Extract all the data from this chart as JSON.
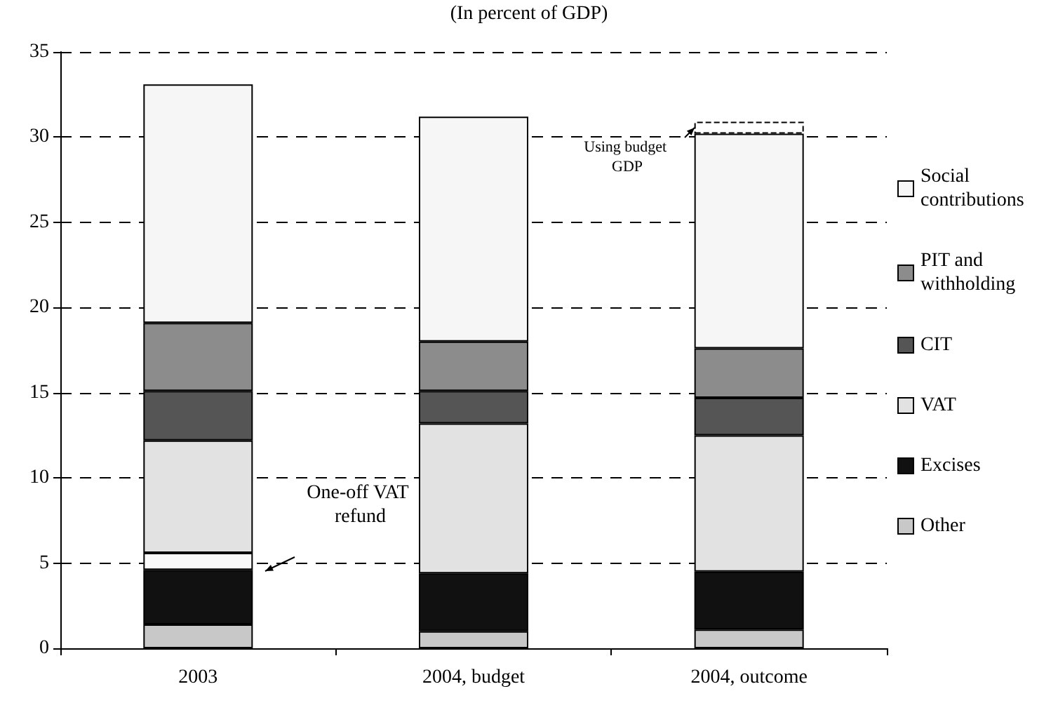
{
  "chart_data": {
    "type": "bar",
    "subtitle": "(In percent of GDP)",
    "stacked": true,
    "categories": [
      "2003",
      "2004, budget",
      "2004, outcome"
    ],
    "series": [
      {
        "name": "Other",
        "color": "#c8c8c8",
        "values": [
          1.4,
          1.0,
          1.1
        ]
      },
      {
        "name": "Excises",
        "color": "#111111",
        "values": [
          3.2,
          3.4,
          3.4
        ]
      },
      {
        "color": "#fafafa",
        "values": [
          1.0,
          null,
          null
        ]
      },
      {
        "name": "VAT",
        "color": "#e2e2e2",
        "values": [
          6.6,
          8.8,
          8.0
        ]
      },
      {
        "name": "CIT",
        "color": "#555555",
        "values": [
          2.9,
          1.9,
          2.2
        ]
      },
      {
        "name": "PIT and withholding",
        "color": "#8c8c8c",
        "values": [
          4.0,
          2.9,
          2.9
        ]
      },
      {
        "name": "Social contributions",
        "color": "#f6f6f6",
        "values": [
          14.0,
          13.2,
          12.6
        ]
      },
      {
        "color": "#ffffff",
        "line_style": "dashed",
        "values": [
          null,
          null,
          0.7
        ]
      }
    ],
    "ylim": [
      0,
      35
    ],
    "yticks": [
      0,
      5,
      10,
      15,
      20,
      25,
      30,
      35
    ],
    "grid": "y",
    "legend": "right",
    "annotations": [
      "One-off VAT refund",
      "Using budget GDP"
    ]
  }
}
